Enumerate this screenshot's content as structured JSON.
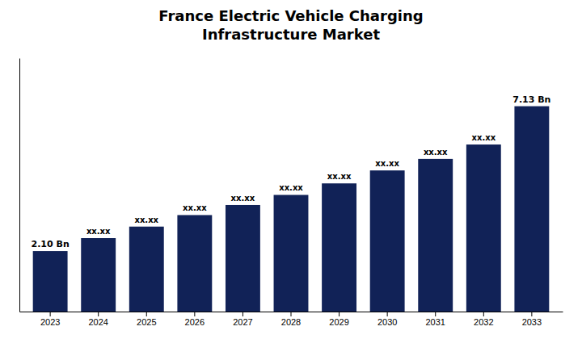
{
  "chart_data": {
    "type": "bar",
    "title": "France Electric Vehicle Charging\nInfrastructure Market",
    "categories": [
      "2023",
      "2024",
      "2025",
      "2026",
      "2027",
      "2028",
      "2029",
      "2030",
      "2031",
      "2032",
      "2033"
    ],
    "values": [
      2.1,
      2.55,
      2.95,
      3.35,
      3.7,
      4.05,
      4.45,
      4.9,
      5.3,
      5.8,
      7.13
    ],
    "value_labels": [
      "2.10 Bn",
      "xx.xx",
      "xx.xx",
      "xx.xx",
      "xx.xx",
      "xx.xx",
      "xx.xx",
      "xx.xx",
      "xx.xx",
      "xx.xx",
      "7.13 Bn"
    ],
    "data_labels": true,
    "color": "#112257",
    "ylim": [
      0,
      8.8
    ],
    "grid": false,
    "tick_labels": "x"
  }
}
